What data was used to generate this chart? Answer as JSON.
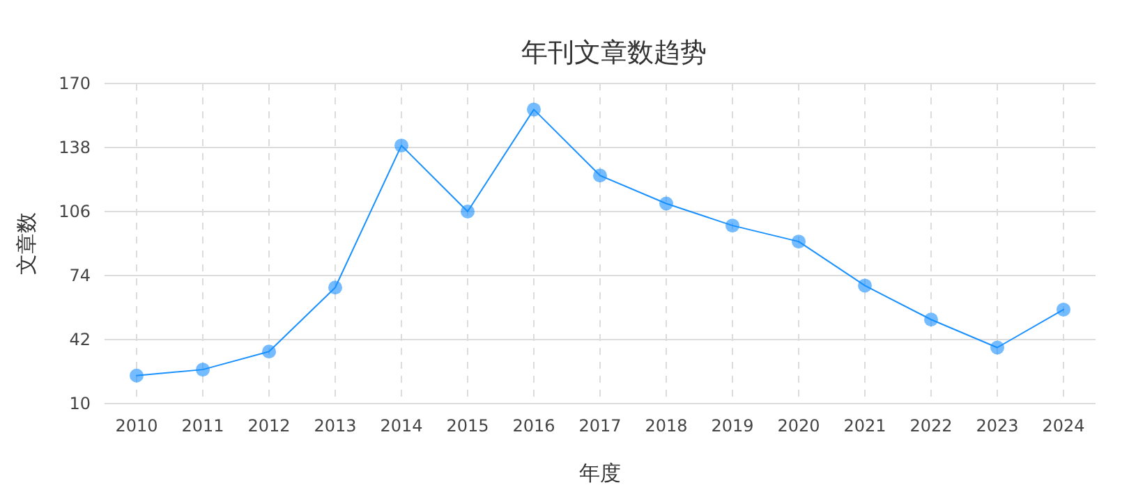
{
  "chart_data": {
    "type": "line",
    "title": "年刊文章数趋势",
    "xlabel": "年度",
    "ylabel": "文章数",
    "categories": [
      "2010",
      "2011",
      "2012",
      "2013",
      "2014",
      "2015",
      "2016",
      "2017",
      "2018",
      "2019",
      "2020",
      "2021",
      "2022",
      "2023",
      "2024"
    ],
    "series": [
      {
        "color": "#1890ff",
        "values": [
          24,
          27,
          36,
          68,
          139,
          106,
          157,
          124,
          110,
          99,
          91,
          69,
          52,
          38,
          57
        ]
      }
    ],
    "ylim": [
      10,
      170
    ],
    "yticks": [
      10,
      42,
      74,
      106,
      138,
      170
    ],
    "grid": true,
    "marker": "circle",
    "line_style": "solid"
  }
}
